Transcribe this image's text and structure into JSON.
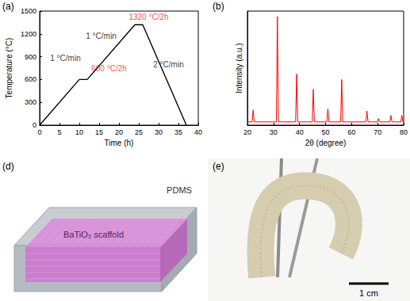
{
  "chart_data": [
    {
      "type": "line",
      "panel": "(a)",
      "x_label": "Time (h)",
      "y_label": "Temperature (°C)",
      "x": [
        0,
        10,
        12,
        24,
        26,
        37
      ],
      "values": [
        0,
        600,
        600,
        1320,
        1320,
        0
      ],
      "color": "#000000",
      "xlim": [
        0,
        40
      ],
      "xticks": [
        0,
        5,
        10,
        15,
        20,
        25,
        30,
        35,
        40
      ],
      "ylim": [
        0,
        1500
      ],
      "yticks": [
        0,
        300,
        600,
        900,
        1200,
        1500
      ],
      "grid": false,
      "annotations": [
        {
          "text": "1 °C/min",
          "x": 6.5,
          "y": 880,
          "color": "#000000"
        },
        {
          "text": "600 °C/2h",
          "x": 17.5,
          "y": 740,
          "color": "#e8262a"
        },
        {
          "text": "1 °C/min",
          "x": 15.5,
          "y": 1170,
          "color": "#000000"
        },
        {
          "text": "1320 °C/2h",
          "x": 27.5,
          "y": 1420,
          "color": "#e8262a"
        },
        {
          "text": "2 °C/min",
          "x": 32.5,
          "y": 800,
          "color": "#000000"
        }
      ]
    },
    {
      "type": "line",
      "panel": "(b)",
      "x_label": "2θ (degree)",
      "y_label": "Intensity (a.u.)",
      "x": [
        20,
        21.8,
        22.2,
        22.6,
        31.1,
        31.5,
        31.9,
        38.5,
        38.9,
        39.3,
        44.9,
        45.3,
        45.7,
        50.5,
        50.9,
        51.3,
        55.8,
        56.2,
        56.6,
        65.5,
        65.9,
        66.3,
        69.9,
        70.3,
        70.7,
        74.7,
        75.1,
        75.5,
        78.9,
        79.3,
        79.7,
        80
      ],
      "values": [
        0.03,
        0.03,
        0.14,
        0.03,
        0.03,
        1.0,
        0.03,
        0.03,
        0.47,
        0.03,
        0.03,
        0.33,
        0.03,
        0.03,
        0.15,
        0.03,
        0.03,
        0.42,
        0.03,
        0.03,
        0.13,
        0.03,
        0.03,
        0.06,
        0.03,
        0.03,
        0.09,
        0.03,
        0.03,
        0.09,
        0.03,
        0.03
      ],
      "color": "#ff0000",
      "xlim": [
        20,
        80
      ],
      "xticks": [
        20,
        30,
        40,
        50,
        60,
        70,
        80
      ],
      "ylim": [
        0,
        1.05
      ],
      "grid": false,
      "tick_labels": "x"
    }
  ],
  "panels": [
    {
      "panel": "(d)",
      "outer_label": "PDMS",
      "inner_label": "BaTiO₃ scaffold"
    },
    {
      "panel": "(e)",
      "scale_bar": "1 cm"
    }
  ]
}
